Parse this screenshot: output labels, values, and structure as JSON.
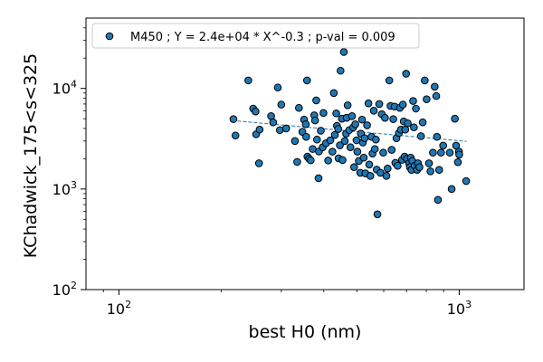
{
  "chart_data": {
    "type": "scatter",
    "x_scale": "log",
    "y_scale": "log",
    "xlim": [
      80,
      1550
    ],
    "ylim": [
      100,
      50000
    ],
    "xlabel": "best H0 (nm)",
    "ylabel": "KChadwick_175<s<325",
    "x_ticks": [
      {
        "value": 100,
        "base": "10",
        "exp": "2"
      },
      {
        "value": 1000,
        "base": "10",
        "exp": "3"
      }
    ],
    "y_ticks": [
      {
        "value": 100,
        "base": "10",
        "exp": "2"
      },
      {
        "value": 1000,
        "base": "10",
        "exp": "3"
      },
      {
        "value": 10000,
        "base": "10",
        "exp": "4"
      }
    ],
    "grid": false,
    "legend_position": "top-left",
    "colors": {
      "marker_fill": "#1f77b4",
      "marker_edge": "#000000",
      "fit_line": "#1f77b4"
    },
    "legend": {
      "label": "M450 ; Y = 2.4e+04 * X^-0.3 ; p-val = 0.009"
    },
    "fit": {
      "coefficient": 24000,
      "exponent": -0.3,
      "x_range": [
        215,
        1050
      ]
    },
    "series": [
      {
        "name": "M450 ; Y = 2.4e+04 * X^-0.3 ; p-val = 0.009",
        "points": [
          [
            217,
            4950
          ],
          [
            220,
            3400
          ],
          [
            240,
            12000
          ],
          [
            248,
            6300
          ],
          [
            252,
            5900
          ],
          [
            253,
            3500
          ],
          [
            258,
            1800
          ],
          [
            259,
            3900
          ],
          [
            280,
            5300
          ],
          [
            284,
            4600
          ],
          [
            293,
            10200
          ],
          [
            297,
            3850
          ],
          [
            300,
            6900
          ],
          [
            310,
            4000
          ],
          [
            329,
            3000
          ],
          [
            334,
            1860
          ],
          [
            338,
            6400
          ],
          [
            346,
            3700
          ],
          [
            350,
            4900
          ],
          [
            354,
            4400
          ],
          [
            355,
            3300
          ],
          [
            357,
            12000
          ],
          [
            358,
            2100
          ],
          [
            362,
            2000
          ],
          [
            366,
            1930
          ],
          [
            371,
            2500
          ],
          [
            375,
            5400
          ],
          [
            377,
            4800
          ],
          [
            380,
            7600
          ],
          [
            382,
            3100
          ],
          [
            386,
            1280
          ],
          [
            387,
            2360
          ],
          [
            392,
            3800
          ],
          [
            397,
            2600
          ],
          [
            399,
            5700
          ],
          [
            406,
            2850
          ],
          [
            412,
            1920
          ],
          [
            418,
            3050
          ],
          [
            424,
            2350
          ],
          [
            428,
            9000
          ],
          [
            431,
            3450
          ],
          [
            435,
            5650
          ],
          [
            437,
            4250
          ],
          [
            441,
            3950
          ],
          [
            442,
            2020
          ],
          [
            446,
            2720
          ],
          [
            448,
            15000
          ],
          [
            452,
            5000
          ],
          [
            454,
            1940
          ],
          [
            458,
            23000
          ],
          [
            461,
            3000
          ],
          [
            465,
            3550
          ],
          [
            467,
            5100
          ],
          [
            470,
            6800
          ],
          [
            475,
            3850
          ],
          [
            479,
            2600
          ],
          [
            484,
            5300
          ],
          [
            488,
            4100
          ],
          [
            491,
            1650
          ],
          [
            495,
            4400
          ],
          [
            499,
            3050
          ],
          [
            502,
            2350
          ],
          [
            507,
            1900
          ],
          [
            512,
            1450
          ],
          [
            514,
            3550
          ],
          [
            518,
            4900
          ],
          [
            521,
            2900
          ],
          [
            524,
            2050
          ],
          [
            527,
            3200
          ],
          [
            530,
            1430
          ],
          [
            536,
            4300
          ],
          [
            541,
            7100
          ],
          [
            544,
            1750
          ],
          [
            548,
            1350
          ],
          [
            552,
            3300
          ],
          [
            556,
            2250
          ],
          [
            561,
            6000
          ],
          [
            565,
            2500
          ],
          [
            569,
            3100
          ],
          [
            572,
            1560
          ],
          [
            575,
            560
          ],
          [
            582,
            7000
          ],
          [
            587,
            1450
          ],
          [
            592,
            5550
          ],
          [
            598,
            2300
          ],
          [
            605,
            5100
          ],
          [
            611,
            1350
          ],
          [
            616,
            1600
          ],
          [
            623,
            12000
          ],
          [
            628,
            6700
          ],
          [
            633,
            2450
          ],
          [
            640,
            4950
          ],
          [
            646,
            6600
          ],
          [
            649,
            1820
          ],
          [
            654,
            3200
          ],
          [
            659,
            1700
          ],
          [
            665,
            3600
          ],
          [
            669,
            6400
          ],
          [
            674,
            3900
          ],
          [
            679,
            1950
          ],
          [
            683,
            6900
          ],
          [
            687,
            4700
          ],
          [
            691,
            2100
          ],
          [
            694,
            3900
          ],
          [
            698,
            14000
          ],
          [
            702,
            2000
          ],
          [
            706,
            4500
          ],
          [
            712,
            1800
          ],
          [
            716,
            1650
          ],
          [
            720,
            2050
          ],
          [
            724,
            1550
          ],
          [
            728,
            1900
          ],
          [
            732,
            7500
          ],
          [
            736,
            4100
          ],
          [
            740,
            1700
          ],
          [
            746,
            6300
          ],
          [
            752,
            1550
          ],
          [
            756,
            1800
          ],
          [
            764,
            1650
          ],
          [
            772,
            3350
          ],
          [
            781,
            4600
          ],
          [
            792,
            12000
          ],
          [
            802,
            7800
          ],
          [
            815,
            1800
          ],
          [
            823,
            1500
          ],
          [
            837,
            2300
          ],
          [
            847,
            10400
          ],
          [
            856,
            8400
          ],
          [
            866,
            780
          ],
          [
            873,
            1550
          ],
          [
            884,
            2300
          ],
          [
            897,
            2700
          ],
          [
            938,
            2300
          ],
          [
            950,
            1000
          ],
          [
            971,
            5000
          ],
          [
            979,
            2700
          ],
          [
            991,
            1850
          ],
          [
            998,
            2350
          ],
          [
            1048,
            1200
          ],
          [
            1000,
            2200
          ],
          [
            860,
            3300
          ]
        ]
      }
    ]
  }
}
